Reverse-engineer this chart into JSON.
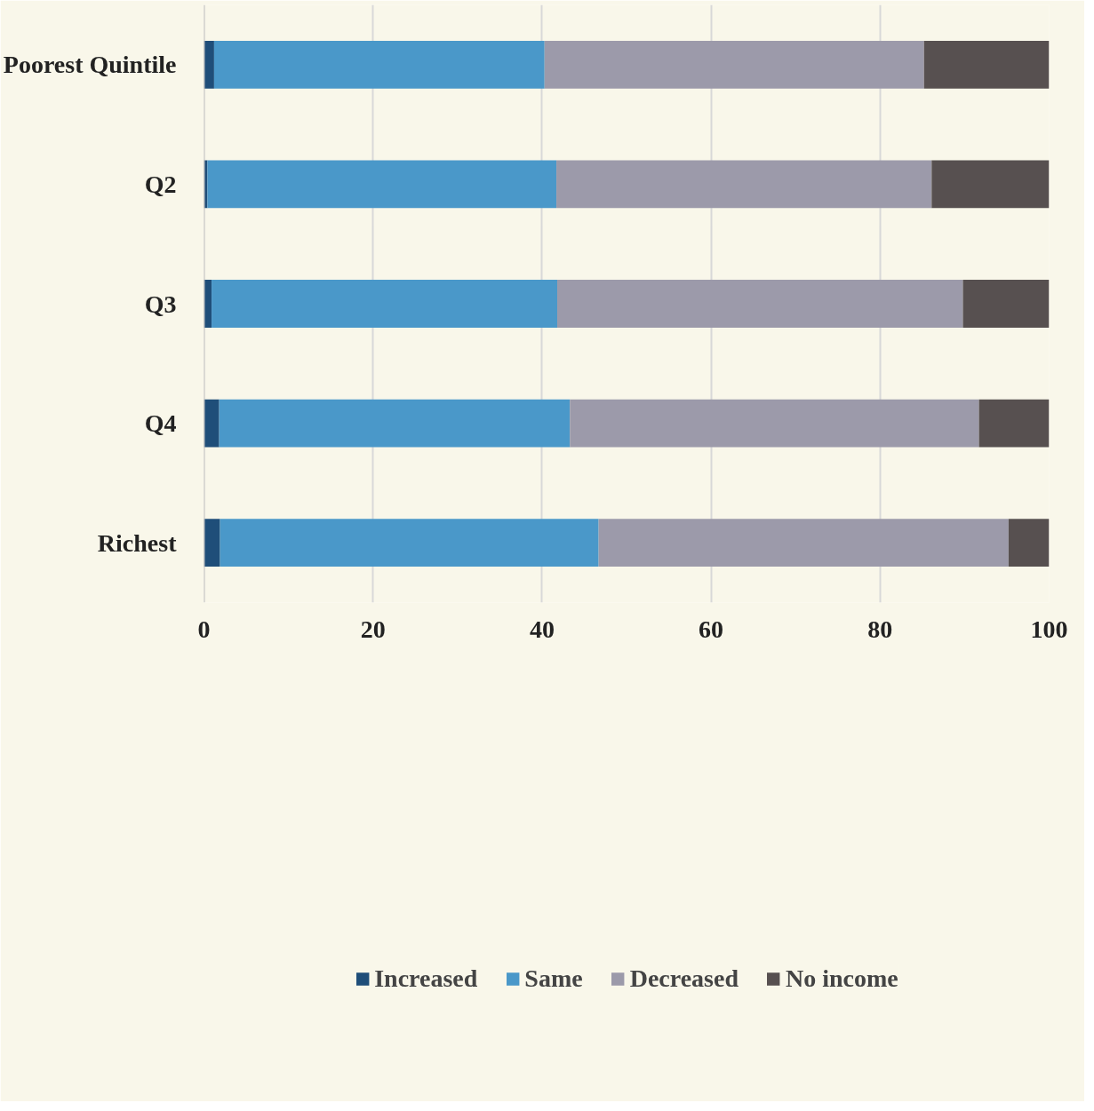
{
  "chart_data": {
    "type": "bar",
    "orientation": "horizontal",
    "stacked": true,
    "categories": [
      "Poorest Quintile",
      "Q2",
      "Q3",
      "Q4",
      "Richest"
    ],
    "series": [
      {
        "name": "Increased",
        "color": "#1f4e79",
        "values": [
          1.2,
          0.4,
          0.9,
          1.8,
          1.9
        ]
      },
      {
        "name": "Same",
        "color": "#4a98c9",
        "values": [
          39.1,
          41.3,
          40.9,
          41.5,
          44.8
        ]
      },
      {
        "name": "Decreased",
        "color": "#9c9aaa",
        "values": [
          44.9,
          44.4,
          48.0,
          48.4,
          48.5
        ]
      },
      {
        "name": "No income",
        "color": "#575050",
        "values": [
          14.8,
          13.9,
          10.2,
          8.3,
          4.8
        ]
      }
    ],
    "xlim": [
      0,
      100
    ],
    "xticks": [
      0,
      20,
      40,
      60,
      80,
      100
    ],
    "grid": "x",
    "legend": "bottom"
  }
}
